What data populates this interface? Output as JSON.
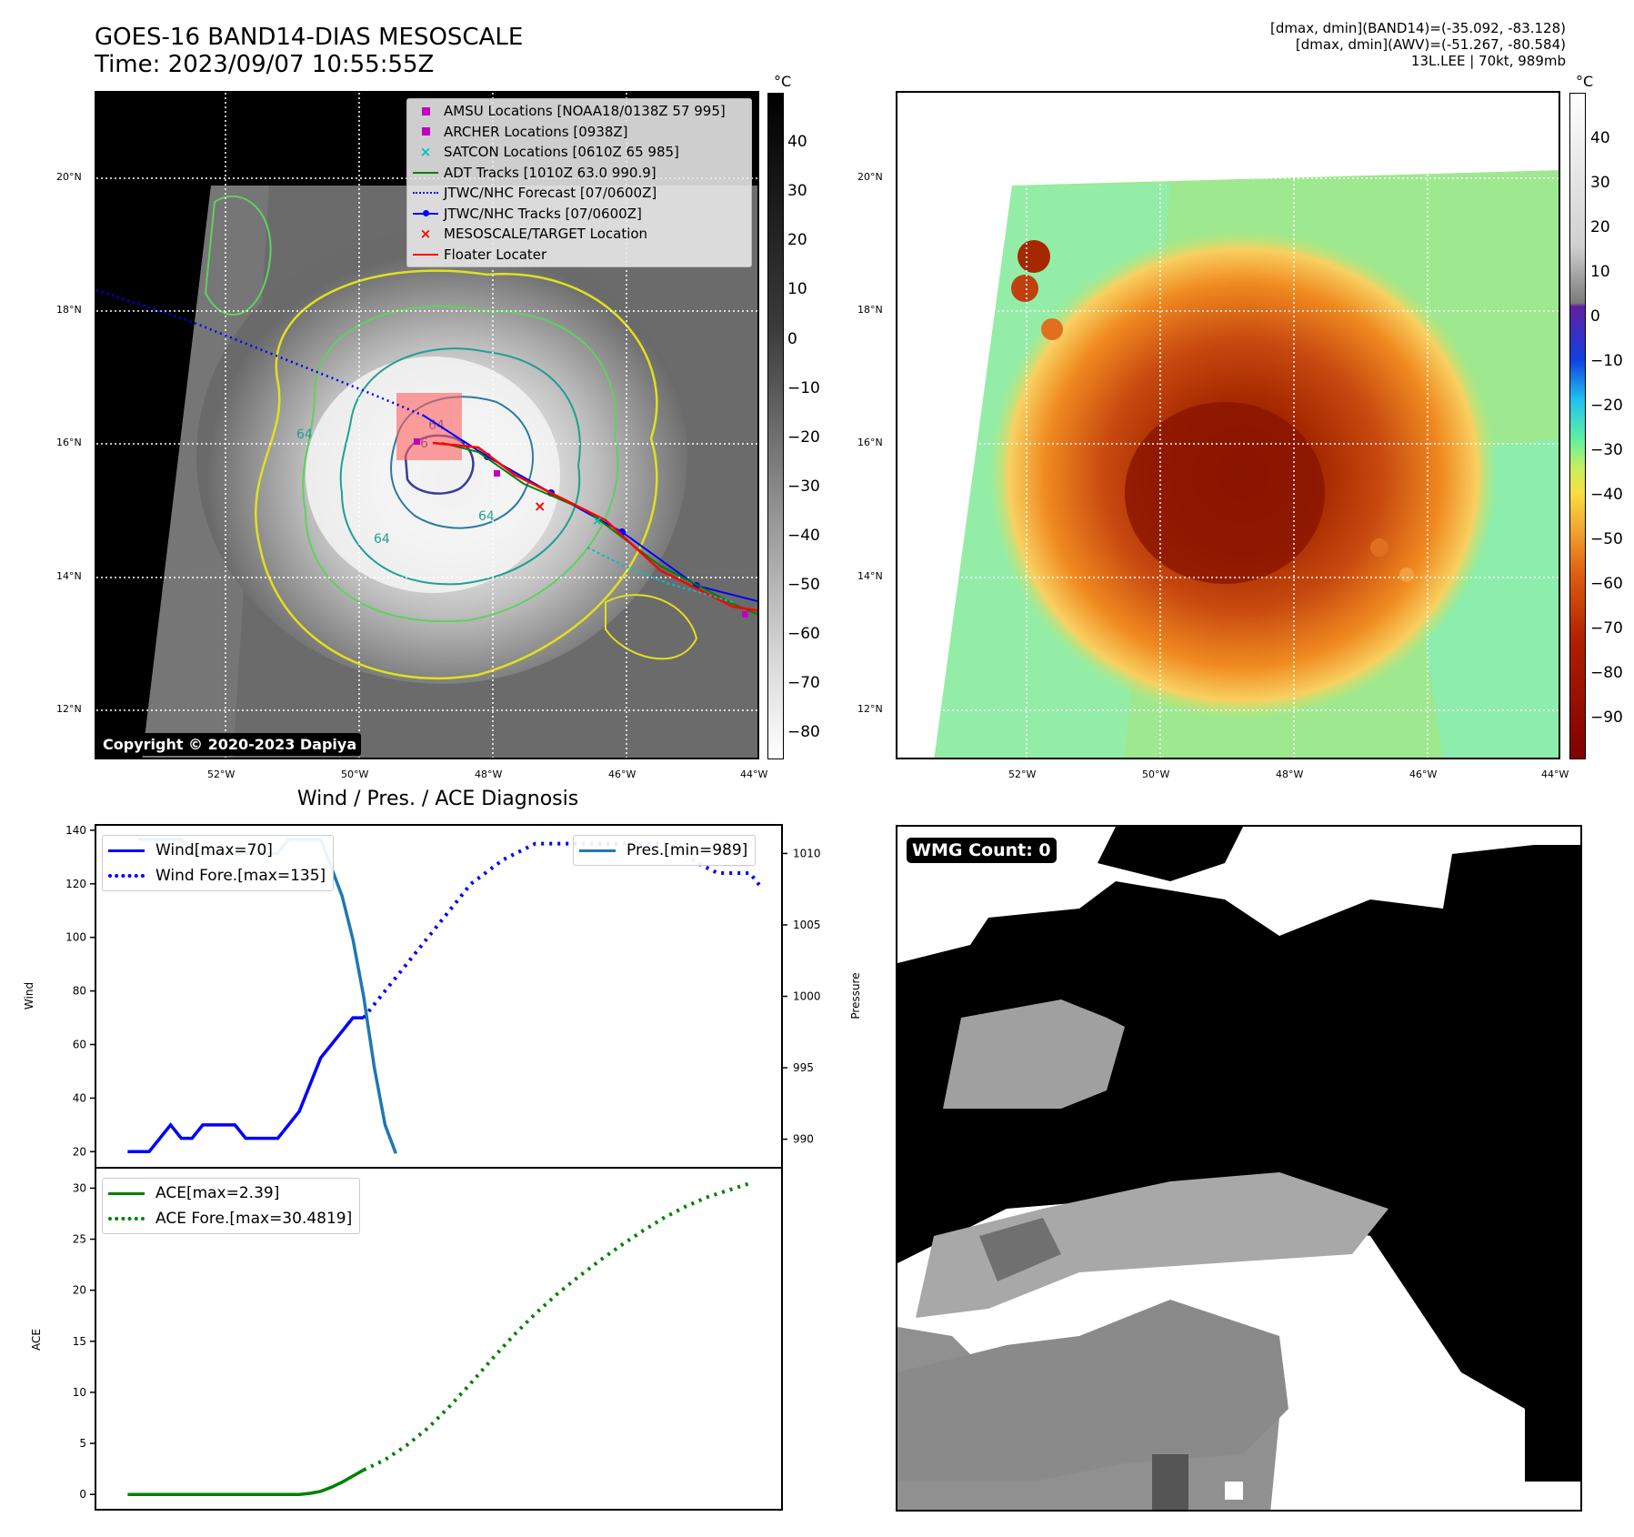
{
  "header": {
    "title_line1": "GOES-16 BAND14-DIAS MESOSCALE",
    "title_line2": "Time: 2023/09/07 10:55:55Z",
    "info_line1": "[dmax, dmin](BAND14)=(-35.092, -83.128)",
    "info_line2": "[dmax, dmin](AWV)=(-51.267, -80.584)",
    "info_line3": "13L.LEE | 70kt, 989mb"
  },
  "map": {
    "lat_labels": [
      "20°N",
      "18°N",
      "16°N",
      "14°N",
      "12°N"
    ],
    "lon_labels": [
      "52°W",
      "50°W",
      "48°W",
      "46°W",
      "44°W"
    ],
    "copyright": "Copyright © 2020-2023 Dapiya",
    "contour_labels": [
      "64",
      "64",
      "64",
      "64",
      "6"
    ],
    "legend": [
      {
        "label": "AMSU Locations [NOAA18/0138Z 57 995]",
        "symbol": "square",
        "color": "#c000c0"
      },
      {
        "label": "ARCHER Locations [0938Z]",
        "symbol": "square",
        "color": "#c000c0"
      },
      {
        "label": "SATCON Locations [0610Z 65 985]",
        "symbol": "x",
        "color": "#00c0c0"
      },
      {
        "label": "ADT Tracks [1010Z 63.0 990.9]",
        "symbol": "line",
        "color": "#008000"
      },
      {
        "label": "JTWC/NHC Forecast [07/0600Z]",
        "symbol": "dotted",
        "color": "#0000ff"
      },
      {
        "label": "JTWC/NHC Tracks [07/0600Z]",
        "symbol": "line-dot",
        "color": "#0000ff"
      },
      {
        "label": "MESOSCALE/TARGET Location",
        "symbol": "x",
        "color": "#ff0000"
      },
      {
        "label": "Floater Locater",
        "symbol": "line",
        "color": "#ff0000"
      }
    ],
    "colorbar_left": {
      "unit": "°C",
      "ticks": [
        "40",
        "30",
        "20",
        "10",
        "0",
        "−10",
        "−20",
        "−30",
        "−40",
        "−50",
        "−60",
        "−70",
        "−80"
      ]
    },
    "colorbar_right": {
      "unit": "°C",
      "ticks": [
        "40",
        "30",
        "20",
        "10",
        "0",
        "−10",
        "−20",
        "−30",
        "−40",
        "−50",
        "−60",
        "−70",
        "−80",
        "−90"
      ]
    }
  },
  "diagnosis": {
    "title": "Wind / Pres. / ACE Diagnosis",
    "wind_ylabel": "Wind",
    "pressure_ylabel": "Pressure",
    "ace_ylabel": "ACE",
    "wind_legend": [
      "Wind[max=70]",
      "Wind Fore.[max=135]"
    ],
    "pres_legend": "Pres.[min=989]",
    "ace_legend": [
      "ACE[max=2.39]",
      "ACE Fore.[max=30.4819]"
    ]
  },
  "wmg": {
    "label": "WMG Count: 0"
  },
  "colors": {
    "wind": "#0000ff",
    "pressure": "#1f77b4",
    "ace": "#008000",
    "track_red": "#ff0000"
  },
  "chart_data": [
    {
      "type": "line",
      "title": "Wind / Pres. / ACE Diagnosis",
      "ylabel": "Wind",
      "ylim": [
        14,
        142
      ],
      "yticks": [
        20,
        40,
        60,
        80,
        100,
        120,
        140
      ],
      "series": [
        {
          "name": "Wind[max=70]",
          "x": [
            0,
            1,
            2,
            3,
            4,
            5,
            6,
            7,
            8,
            9,
            10,
            11,
            12,
            13,
            14,
            15,
            16,
            17,
            18,
            19,
            20,
            21,
            22
          ],
          "values": [
            20,
            20,
            20,
            25,
            30,
            25,
            25,
            30,
            30,
            30,
            30,
            25,
            25,
            25,
            25,
            30,
            35,
            45,
            55,
            60,
            65,
            70,
            70
          ]
        },
        {
          "name": "Wind Fore.[max=135]",
          "style": "dotted",
          "x": [
            22,
            23,
            24,
            25,
            26,
            27,
            28,
            29,
            30,
            31,
            32,
            33,
            34,
            35,
            36,
            37,
            38,
            39,
            40,
            41,
            42,
            43,
            44,
            45,
            46,
            47,
            48,
            49,
            50,
            51,
            52,
            53,
            54,
            55,
            56,
            57,
            58,
            59
          ],
          "values": [
            70,
            75,
            80,
            85,
            90,
            95,
            100,
            105,
            110,
            115,
            120,
            123,
            126,
            129,
            131,
            133,
            135,
            135,
            135,
            135,
            135,
            135,
            135,
            135,
            135,
            135,
            135,
            135,
            135,
            134,
            131,
            128,
            126,
            124,
            124,
            124,
            124,
            119
          ]
        }
      ],
      "secondary": {
        "ylabel": "Pressure",
        "ylim": [
          988,
          1012
        ],
        "yticks": [
          990,
          995,
          1000,
          1005,
          1010
        ],
        "series": [
          {
            "name": "Pres.[min=989]",
            "x": [
              1,
              2,
              3,
              4,
              5,
              6,
              7,
              8,
              9,
              10,
              11,
              12,
              13,
              14,
              15,
              16,
              17,
              18,
              19,
              20,
              21,
              22,
              23,
              24,
              25
            ],
            "values": [
              1011,
              1011,
              1011,
              1011,
              1011,
              1010,
              1010,
              1010,
              1010,
              1010,
              1010,
              1010,
              1010,
              1010,
              1011,
              1011,
              1011,
              1011,
              1009,
              1007,
              1004,
              1000,
              995,
              991,
              989
            ]
          }
        ]
      }
    },
    {
      "type": "line",
      "ylabel": "ACE",
      "ylim": [
        -1.5,
        32
      ],
      "yticks": [
        0,
        5,
        10,
        15,
        20,
        25,
        30
      ],
      "series": [
        {
          "name": "ACE[max=2.39]",
          "x": [
            0,
            2,
            4,
            6,
            8,
            10,
            12,
            14,
            16,
            17,
            18,
            19,
            20,
            21,
            22
          ],
          "values": [
            0,
            0,
            0,
            0,
            0,
            0,
            0,
            0,
            0,
            0.1,
            0.3,
            0.7,
            1.2,
            1.8,
            2.39
          ]
        },
        {
          "name": "ACE Fore.[max=30.4819]",
          "style": "dotted",
          "x": [
            22,
            24,
            26,
            28,
            30,
            32,
            34,
            36,
            38,
            40,
            42,
            44,
            46,
            48,
            50,
            52,
            54,
            56,
            58
          ],
          "values": [
            2.39,
            3.4,
            4.8,
            6.5,
            8.6,
            10.9,
            13.3,
            15.6,
            17.7,
            19.6,
            21.3,
            22.9,
            24.4,
            25.8,
            27.1,
            28.2,
            29.1,
            29.8,
            30.48
          ]
        }
      ]
    }
  ]
}
